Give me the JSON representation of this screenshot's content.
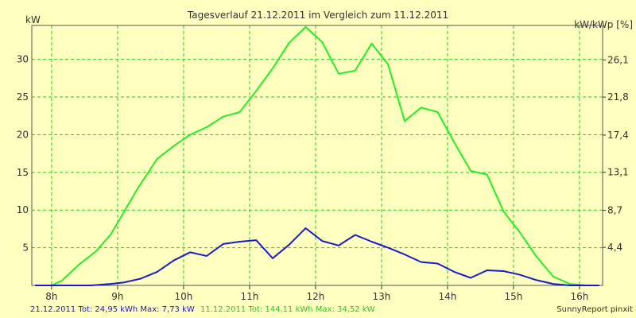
{
  "chart_data": {
    "type": "line",
    "title": "Tagesverlauf 21.12.2011 im Vergleich zum 11.12.2011",
    "ylabel_left": "kW",
    "ylabel_right": "kW/kWp [%]",
    "xlim": [
      7.7,
      16.35
    ],
    "ylim": [
      0,
      34.5
    ],
    "grid": true,
    "x_ticks": [
      {
        "value": 8,
        "label": "8h"
      },
      {
        "value": 9,
        "label": "9h"
      },
      {
        "value": 10,
        "label": "10h"
      },
      {
        "value": 11,
        "label": "11h"
      },
      {
        "value": 12,
        "label": "12h"
      },
      {
        "value": 13,
        "label": "13h"
      },
      {
        "value": 14,
        "label": "14h"
      },
      {
        "value": 15,
        "label": "15h"
      },
      {
        "value": 16,
        "label": "16h"
      }
    ],
    "y_ticks": [
      {
        "value": 5,
        "label": "5"
      },
      {
        "value": 10,
        "label": "10"
      },
      {
        "value": 15,
        "label": "15"
      },
      {
        "value": 20,
        "label": "20"
      },
      {
        "value": 25,
        "label": "25"
      },
      {
        "value": 30,
        "label": "30"
      }
    ],
    "y_right_ticks": [
      {
        "value": 4.4,
        "label": "4,4"
      },
      {
        "value": 8.7,
        "label": "8,7"
      },
      {
        "value": 13.1,
        "label": "13,1"
      },
      {
        "value": 17.4,
        "label": "17,4"
      },
      {
        "value": 21.8,
        "label": "21,8"
      },
      {
        "value": 26.1,
        "label": "26,1"
      }
    ],
    "y_right_scale": 0.8723,
    "series": [
      {
        "name": "11.12.2011",
        "color": "#22ee22",
        "x": [
          7.75,
          8.0,
          8.15,
          8.42,
          8.67,
          8.9,
          9.1,
          9.3,
          9.6,
          9.85,
          10.1,
          10.35,
          10.6,
          10.85,
          11.1,
          11.35,
          11.6,
          11.85,
          12.1,
          12.35,
          12.6,
          12.85,
          13.1,
          13.35,
          13.6,
          13.85,
          14.1,
          14.35,
          14.6,
          14.85,
          15.1,
          15.35,
          15.6,
          15.85,
          16.1,
          16.3
        ],
        "y": [
          0,
          0,
          0.6,
          2.8,
          4.5,
          6.8,
          9.8,
          12.8,
          16.8,
          18.5,
          20.0,
          21.0,
          22.4,
          23.0,
          25.8,
          28.8,
          32.2,
          34.3,
          32.3,
          28.1,
          28.5,
          32.1,
          29.3,
          21.8,
          23.6,
          23.0,
          19.0,
          15.2,
          14.7,
          9.8,
          7.0,
          3.8,
          1.2,
          0.2,
          0,
          0
        ]
      },
      {
        "name": "21.12.2011",
        "color": "#1a1acc",
        "x": [
          7.75,
          8.0,
          8.3,
          8.6,
          8.9,
          9.1,
          9.35,
          9.6,
          9.85,
          10.1,
          10.35,
          10.6,
          10.85,
          11.1,
          11.35,
          11.6,
          11.85,
          12.1,
          12.35,
          12.6,
          12.85,
          13.1,
          13.35,
          13.6,
          13.85,
          14.1,
          14.35,
          14.6,
          14.85,
          15.1,
          15.35,
          15.6,
          15.85,
          16.1,
          16.3
        ],
        "y": [
          0,
          0,
          0,
          0,
          0.2,
          0.4,
          0.9,
          1.8,
          3.3,
          4.4,
          3.9,
          5.5,
          5.8,
          6.0,
          3.6,
          5.4,
          7.6,
          5.9,
          5.3,
          6.7,
          5.8,
          5.0,
          4.1,
          3.1,
          2.9,
          1.8,
          1.0,
          2.0,
          1.9,
          1.4,
          0.7,
          0.2,
          0,
          0,
          0
        ]
      }
    ]
  },
  "footer": {
    "series1_summary": "21.12.2011 Tot: 24,95 kWh Max: 7,73 kW",
    "series2_summary": "11.12.2011 Tot: 144,11 kWh Max: 34,52 kW",
    "credit": "SunnyReport pinxit"
  }
}
